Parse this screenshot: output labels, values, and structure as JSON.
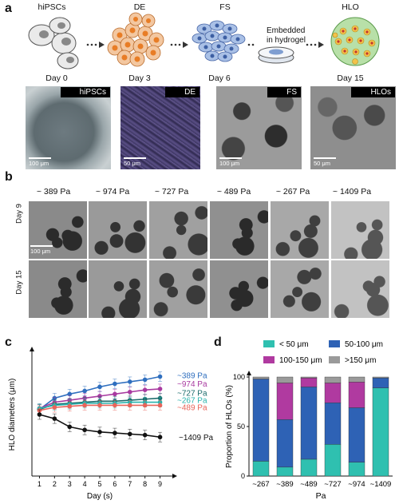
{
  "panel_a": {
    "label": "a",
    "stages": [
      "hiPSCs",
      "DE",
      "FS",
      "HLO"
    ],
    "days": [
      "Day 0",
      "Day 3",
      "Day 6",
      "Day 15"
    ],
    "embed_note_line1": "Embedded",
    "embed_note_line2": "in hydrogel",
    "micrographs": [
      {
        "tag": "hiPSCs",
        "scale": "100 μm"
      },
      {
        "tag": "DE",
        "scale": "50 μm"
      },
      {
        "tag": "FS",
        "scale": "100 μm"
      },
      {
        "tag": "HLOs",
        "scale": "50 μm"
      }
    ]
  },
  "panel_b": {
    "label": "b",
    "pressures": [
      "~ 389 Pa",
      "~ 974 Pa",
      "~ 727 Pa",
      "~ 489 Pa",
      "~ 267 Pa",
      "~ 1409 Pa"
    ],
    "rows": [
      "Day 9",
      "Day 15"
    ],
    "scale": "100 μm"
  },
  "panel_c": {
    "label": "c",
    "chart_data": {
      "type": "line",
      "xlabel": "Day (s)",
      "ylabel": "HLO diameters (μm)",
      "x": [
        1,
        2,
        3,
        4,
        5,
        6,
        7,
        8,
        9
      ],
      "ylim": [
        0,
        120
      ],
      "series": [
        {
          "name": "~389 Pa",
          "color": "#2f6fbf",
          "values": [
            65,
            76,
            80,
            83,
            87,
            90,
            92,
            94,
            97
          ]
        },
        {
          "name": "~974 Pa",
          "color": "#a83aa0",
          "values": [
            66,
            72,
            74,
            76,
            78,
            80,
            82,
            84,
            85
          ]
        },
        {
          "name": "~727 Pa",
          "color": "#1a6b6b",
          "values": [
            65,
            70,
            71,
            72,
            73,
            73,
            74,
            75,
            76
          ]
        },
        {
          "name": "~267 Pa",
          "color": "#29b3ad",
          "values": [
            66,
            69,
            70,
            71,
            71,
            71,
            72,
            72,
            72
          ]
        },
        {
          "name": "~489 Pa",
          "color": "#e8645a",
          "values": [
            64,
            67,
            68,
            69,
            69,
            69,
            69,
            69,
            69
          ]
        },
        {
          "name": "~1409 Pa",
          "color": "#111111",
          "values": [
            60,
            56,
            48,
            45,
            43,
            42,
            41,
            40,
            38
          ]
        }
      ]
    }
  },
  "panel_d": {
    "label": "d",
    "chart_data": {
      "type": "bar",
      "stacked": true,
      "xlabel": "Pa",
      "ylabel": "Proportion of HLOs (%)",
      "ylim": [
        0,
        100
      ],
      "yticks": [
        0,
        50,
        100
      ],
      "categories": [
        "~267",
        "~389",
        "~489",
        "~727",
        "~974",
        "~1409"
      ],
      "series": [
        {
          "name": "< 50 μm",
          "color": "#2fc0b0",
          "values": [
            15,
            9,
            17,
            32,
            14,
            89
          ]
        },
        {
          "name": "50-100 μm",
          "color": "#2e62b5",
          "values": [
            83,
            48,
            73,
            42,
            55,
            10
          ]
        },
        {
          "name": "100-150 μm",
          "color": "#b03aa0",
          "values": [
            0,
            37,
            9,
            20,
            26,
            0
          ]
        },
        {
          "name": ">150 μm",
          "color": "#9a9a9a",
          "values": [
            2,
            6,
            1,
            6,
            5,
            1
          ]
        }
      ]
    }
  }
}
